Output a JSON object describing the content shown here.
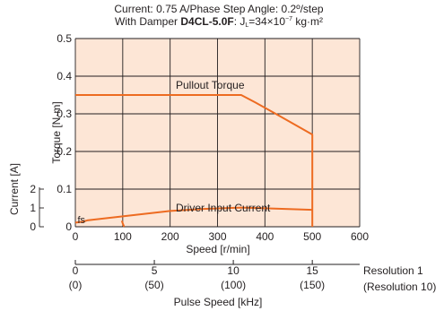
{
  "header": {
    "line1": "Current: 0.75 A/Phase   Step Angle: 0.2º/step",
    "line2_prefix": "With Damper ",
    "model": "D4CL-5.0F",
    "line2_colon": ": J",
    "jl_sub": "L",
    "jl_value": "=34×10",
    "jl_exp": "−7",
    "jl_unit": " kg·m²"
  },
  "colors": {
    "plot_bg": "#fde6d6",
    "grid": "#231f20",
    "curve": "#ed6b21",
    "text": "#231f20"
  },
  "chart_data": {
    "type": "line",
    "x_axis": {
      "label": "Speed [r/min]",
      "range": [
        0,
        600
      ],
      "ticks": [
        0,
        100,
        200,
        300,
        400,
        500,
        600
      ]
    },
    "y_axis_torque": {
      "label": "Torque [N·m]",
      "range": [
        0,
        0.5
      ],
      "ticks": [
        0,
        0.1,
        0.2,
        0.3,
        0.4,
        0.5
      ]
    },
    "y_axis_current": {
      "label": "Current [A]",
      "range": [
        0,
        2
      ],
      "ticks": [
        0,
        1,
        2
      ]
    },
    "pulse_axis": {
      "label": "Pulse Speed [kHz]",
      "ticks": [
        0,
        5,
        10,
        15
      ],
      "sub_labels": [
        "(0)",
        "(50)",
        "(100)",
        "(150)"
      ],
      "resolution1_label": "Resolution 1",
      "resolution10_label": "(Resolution 10)"
    },
    "grid": true,
    "series": [
      {
        "name": "Pullout Torque",
        "axis": "torque",
        "x": [
          0,
          350,
          380,
          430,
          500,
          500
        ],
        "y": [
          0.35,
          0.35,
          0.33,
          0.295,
          0.245,
          0
        ]
      },
      {
        "name": "Driver Input Current",
        "axis": "current",
        "x": [
          0,
          15,
          25,
          100,
          200,
          270,
          350,
          400,
          500
        ],
        "y": [
          0.22,
          0.26,
          0.34,
          0.55,
          0.84,
          0.95,
          1.02,
          0.98,
          0.9
        ]
      },
      {
        "name": "fs",
        "axis": "torque",
        "x": [
          98,
          100,
          103
        ],
        "y": [
          0.016,
          0.009,
          0
        ]
      }
    ],
    "annotations": [
      "Pullout Torque",
      "Driver Input Current",
      "fs"
    ]
  }
}
